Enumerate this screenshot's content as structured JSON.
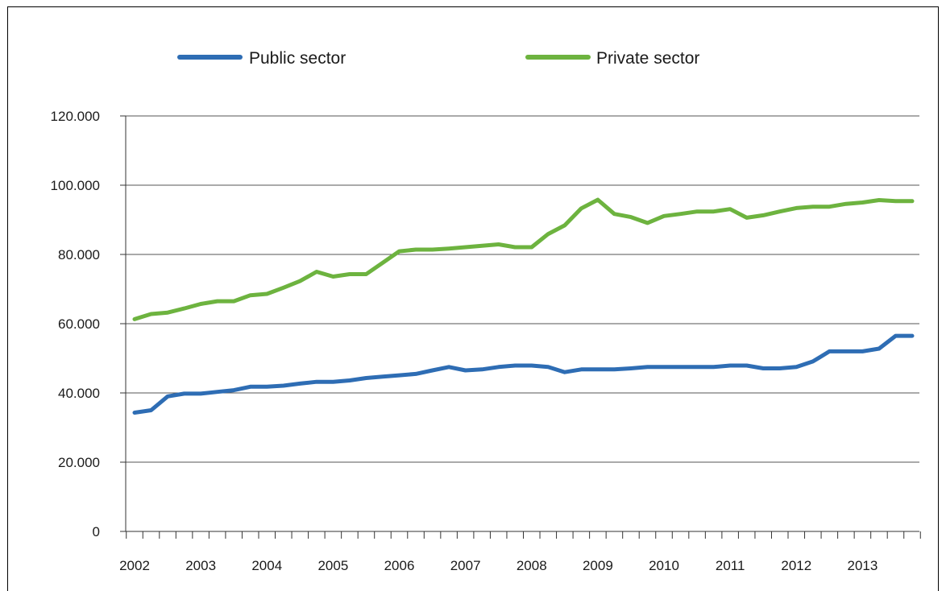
{
  "chart_data": {
    "type": "line",
    "title": "",
    "xlabel": "",
    "ylabel": "",
    "ylim": [
      0,
      120000
    ],
    "y_ticks": [
      0,
      20000,
      40000,
      60000,
      80000,
      100000,
      120000
    ],
    "y_tick_labels": [
      "0",
      "20.000",
      "40.000",
      "60.000",
      "80.000",
      "100.000",
      "120.000"
    ],
    "x_tick_labels": [
      "2002",
      "2003",
      "2004",
      "2005",
      "2006",
      "2007",
      "2008",
      "2009",
      "2010",
      "2011",
      "2012",
      "2013"
    ],
    "x_label_quarter": [
      0,
      4,
      8,
      12,
      16,
      20,
      24,
      28,
      32,
      36,
      40,
      44
    ],
    "grid": true,
    "legend_position": "top",
    "x": [
      "2002-Q1",
      "2002-Q2",
      "2002-Q3",
      "2002-Q4",
      "2003-Q1",
      "2003-Q2",
      "2003-Q3",
      "2003-Q4",
      "2004-Q1",
      "2004-Q2",
      "2004-Q3",
      "2004-Q4",
      "2005-Q1",
      "2005-Q2",
      "2005-Q3",
      "2005-Q4",
      "2006-Q1",
      "2006-Q2",
      "2006-Q3",
      "2006-Q4",
      "2007-Q1",
      "2007-Q2",
      "2007-Q3",
      "2007-Q4",
      "2008-Q1",
      "2008-Q2",
      "2008-Q3",
      "2008-Q4",
      "2009-Q1",
      "2009-Q2",
      "2009-Q3",
      "2009-Q4",
      "2010-Q1",
      "2010-Q2",
      "2010-Q3",
      "2010-Q4",
      "2011-Q1",
      "2011-Q2",
      "2011-Q3",
      "2011-Q4",
      "2012-Q1",
      "2012-Q2",
      "2012-Q3",
      "2012-Q4",
      "2013-Q1",
      "2013-Q2",
      "2013-Q3",
      "2013-Q4"
    ],
    "series": [
      {
        "name": "Public sector",
        "color": "#2e6db4",
        "values": [
          34300,
          35000,
          39000,
          39800,
          39800,
          40300,
          40800,
          41800,
          41800,
          42100,
          42700,
          43200,
          43200,
          43600,
          44300,
          44700,
          45100,
          45500,
          46500,
          47500,
          46500,
          46800,
          47500,
          47900,
          47900,
          47500,
          46000,
          46800,
          46800,
          46800,
          47100,
          47500,
          47500,
          47500,
          47500,
          47500,
          47900,
          47900,
          47100,
          47100,
          47500,
          49100,
          52000,
          52000,
          52000,
          52800,
          56500,
          56500
        ]
      },
      {
        "name": "Private sector",
        "color": "#6db33f",
        "values": [
          61300,
          62800,
          63200,
          64400,
          65700,
          66500,
          66500,
          68200,
          68600,
          70400,
          72300,
          75000,
          73600,
          74300,
          74300,
          77600,
          80900,
          81400,
          81400,
          81700,
          82100,
          82500,
          82900,
          82100,
          82100,
          85900,
          88400,
          93300,
          95800,
          91700,
          90800,
          89100,
          91100,
          91700,
          92400,
          92400,
          93100,
          90600,
          91300,
          92400,
          93400,
          93800,
          93800,
          94600,
          95000,
          95700,
          95400,
          95400
        ]
      }
    ]
  }
}
